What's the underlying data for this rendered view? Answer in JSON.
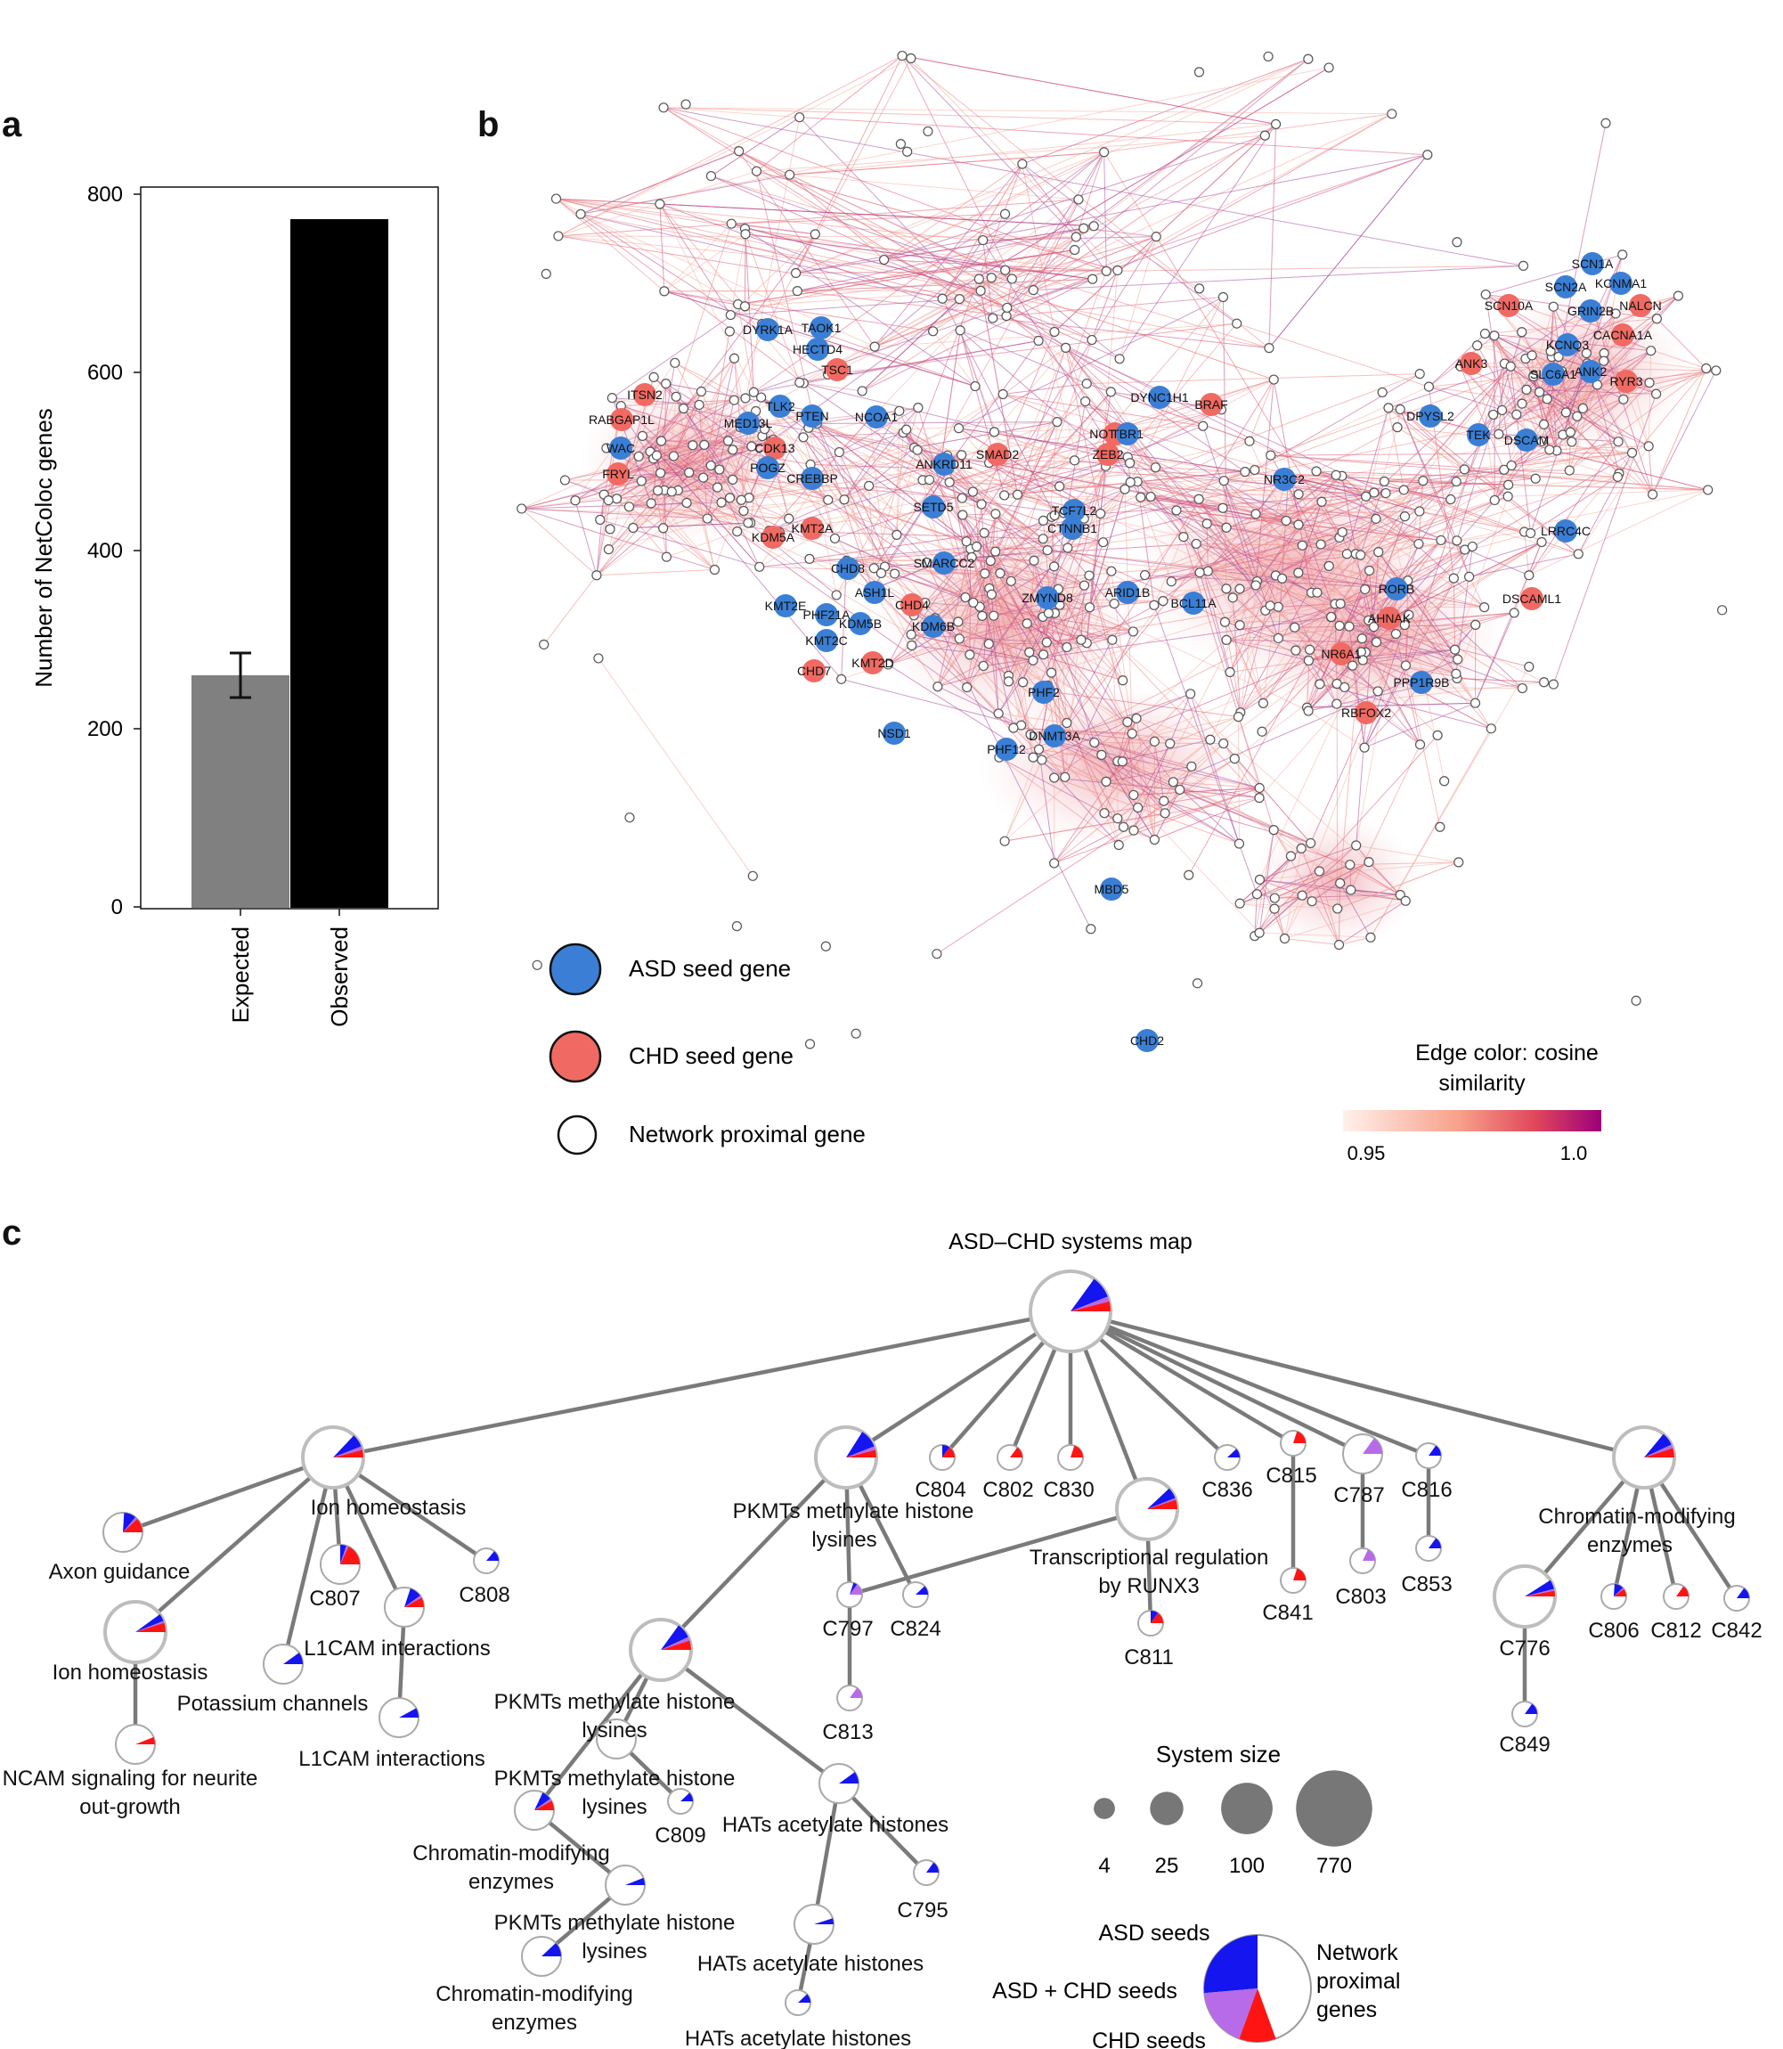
{
  "panels": {
    "a": "a",
    "b": "b",
    "c": "c"
  },
  "chart_data": {
    "type": "bar",
    "categories": [
      "Expected",
      "Observed"
    ],
    "values": [
      260,
      772
    ],
    "error": [
      {
        "low": 235,
        "high": 285
      },
      null
    ],
    "colors": [
      "#808080",
      "#000000"
    ],
    "ylabel": "Number of NetColoc genes",
    "ylim": [
      0,
      800
    ],
    "yticks": [
      0,
      200,
      400,
      600,
      800
    ]
  },
  "network": {
    "legend": {
      "asd": "ASD seed gene",
      "chd": "CHD seed gene",
      "proximal": "Network proximal gene"
    },
    "colors": {
      "asd": "#3a7fd5",
      "chd": "#f06a63",
      "proximal": "#ffffff"
    },
    "edge_legend": {
      "title_line1": "Edge color: cosine",
      "title_line2": "similarity",
      "min": "0.95",
      "max": "1.0"
    },
    "gene_labels": [
      {
        "name": "SCN1A",
        "type": "asd"
      },
      {
        "name": "SCN2A",
        "type": "asd"
      },
      {
        "name": "KCNMA1",
        "type": "asd"
      },
      {
        "name": "SCN10A",
        "type": "chd"
      },
      {
        "name": "GRIN2B",
        "type": "asd"
      },
      {
        "name": "NALCN",
        "type": "chd"
      },
      {
        "name": "CACNA1A",
        "type": "chd"
      },
      {
        "name": "KCNQ3",
        "type": "asd"
      },
      {
        "name": "ANK3",
        "type": "chd"
      },
      {
        "name": "SLC6A1",
        "type": "asd"
      },
      {
        "name": "ANK2",
        "type": "asd"
      },
      {
        "name": "RYR3",
        "type": "chd"
      },
      {
        "name": "DYRK1A",
        "type": "asd"
      },
      {
        "name": "TAOK1",
        "type": "asd"
      },
      {
        "name": "HECTD4",
        "type": "asd"
      },
      {
        "name": "TSC1",
        "type": "chd"
      },
      {
        "name": "ITSN2",
        "type": "chd"
      },
      {
        "name": "RABGAP1L",
        "type": "chd"
      },
      {
        "name": "TLK2",
        "type": "asd"
      },
      {
        "name": "PTEN",
        "type": "asd"
      },
      {
        "name": "NCOA1",
        "type": "asd"
      },
      {
        "name": "MED13L",
        "type": "asd"
      },
      {
        "name": "WAC",
        "type": "asd"
      },
      {
        "name": "CDK13",
        "type": "chd"
      },
      {
        "name": "POGZ",
        "type": "asd"
      },
      {
        "name": "FRYL",
        "type": "chd"
      },
      {
        "name": "CREBBP",
        "type": "asd"
      },
      {
        "name": "DYNC1H1",
        "type": "asd"
      },
      {
        "name": "BRAF",
        "type": "chd"
      },
      {
        "name": "NOTCH1",
        "type": "chd"
      },
      {
        "name": "TBR1",
        "type": "asd"
      },
      {
        "name": "ZEB2",
        "type": "chd"
      },
      {
        "name": "DPYSL2",
        "type": "asd"
      },
      {
        "name": "TEK",
        "type": "asd"
      },
      {
        "name": "DSCAM",
        "type": "asd"
      },
      {
        "name": "ANKRD11",
        "type": "asd"
      },
      {
        "name": "SMAD2",
        "type": "chd"
      },
      {
        "name": "NR3C2",
        "type": "asd"
      },
      {
        "name": "SETD5",
        "type": "asd"
      },
      {
        "name": "TCF7L2",
        "type": "asd"
      },
      {
        "name": "CTNNB1",
        "type": "asd"
      },
      {
        "name": "KMT2A",
        "type": "chd"
      },
      {
        "name": "KDM5A",
        "type": "chd"
      },
      {
        "name": "LRRC4C",
        "type": "asd"
      },
      {
        "name": "CHD8",
        "type": "asd"
      },
      {
        "name": "SMARCC2",
        "type": "asd"
      },
      {
        "name": "ASH1L",
        "type": "asd"
      },
      {
        "name": "ARID1B",
        "type": "asd"
      },
      {
        "name": "KMT2E",
        "type": "asd"
      },
      {
        "name": "CHD4",
        "type": "chd"
      },
      {
        "name": "ZMYND8",
        "type": "asd"
      },
      {
        "name": "BCL11A",
        "type": "asd"
      },
      {
        "name": "RORB",
        "type": "asd"
      },
      {
        "name": "DSCAML1",
        "type": "chd"
      },
      {
        "name": "PHF21A",
        "type": "asd"
      },
      {
        "name": "KDM5B",
        "type": "asd"
      },
      {
        "name": "KDM6B",
        "type": "asd"
      },
      {
        "name": "AHNAK",
        "type": "chd"
      },
      {
        "name": "KMT2C",
        "type": "asd"
      },
      {
        "name": "NR6A1",
        "type": "chd"
      },
      {
        "name": "CHD7",
        "type": "chd"
      },
      {
        "name": "KMT2D",
        "type": "chd"
      },
      {
        "name": "PPP1R9B",
        "type": "asd"
      },
      {
        "name": "PHF2",
        "type": "asd"
      },
      {
        "name": "RBFOX2",
        "type": "chd"
      },
      {
        "name": "NSD1",
        "type": "asd"
      },
      {
        "name": "DNMT3A",
        "type": "asd"
      },
      {
        "name": "PHF12",
        "type": "asd"
      },
      {
        "name": "MBD5",
        "type": "asd"
      },
      {
        "name": "CHD2",
        "type": "asd"
      }
    ]
  },
  "systems_map": {
    "title": "ASD–CHD systems map",
    "nodes": [
      {
        "id": "root",
        "label": "",
        "size": 770,
        "asd": 0.09,
        "both": 0.02,
        "chd": 0.04
      },
      {
        "id": "ion1",
        "label": "Ion homeostasis",
        "size": 100,
        "asd": 0.07,
        "both": 0.02,
        "chd": 0.04
      },
      {
        "id": "axon",
        "label": "Axon guidance",
        "size": 25,
        "asd": 0.1,
        "both": 0.02,
        "chd": 0.12
      },
      {
        "id": "ion2",
        "label": "Ion homeostasis",
        "size": 100,
        "asd": 0.04,
        "both": 0.01,
        "chd": 0.05
      },
      {
        "id": "ncam",
        "label": "NCAM signaling for neurite out-growth",
        "size": 25,
        "asd": 0.0,
        "both": 0.0,
        "chd": 0.06
      },
      {
        "id": "c807",
        "label": "C807",
        "size": 25,
        "asd": 0.05,
        "both": 0.02,
        "chd": 0.18
      },
      {
        "id": "potassium",
        "label": "Potassium channels",
        "size": 25,
        "asd": 0.1,
        "both": 0.0,
        "chd": 0.0
      },
      {
        "id": "l1cam1",
        "label": "L1CAM interactions",
        "size": 25,
        "asd": 0.1,
        "both": 0.02,
        "chd": 0.08
      },
      {
        "id": "l1cam2",
        "label": "L1CAM interactions",
        "size": 25,
        "asd": 0.08,
        "both": 0.0,
        "chd": 0.0
      },
      {
        "id": "c808",
        "label": "C808",
        "size": 4,
        "asd": 0.14,
        "both": 0.0,
        "chd": 0.0
      },
      {
        "id": "pkmt1",
        "label": "PKMTs methylate histone lysines",
        "size": 100,
        "asd": 0.1,
        "both": 0.02,
        "chd": 0.04
      },
      {
        "id": "c804",
        "label": "C804",
        "size": 4,
        "asd": 0.1,
        "both": 0.0,
        "chd": 0.15
      },
      {
        "id": "c802",
        "label": "C802",
        "size": 4,
        "asd": 0.0,
        "both": 0.0,
        "chd": 0.15
      },
      {
        "id": "c830",
        "label": "C830",
        "size": 4,
        "asd": 0.0,
        "both": 0.0,
        "chd": 0.2
      },
      {
        "id": "runx3",
        "label": "Transcriptional regulation by RUNX3",
        "size": 100,
        "asd": 0.06,
        "both": 0.01,
        "chd": 0.05
      },
      {
        "id": "c836",
        "label": "C836",
        "size": 4,
        "asd": 0.12,
        "both": 0.0,
        "chd": 0.0
      },
      {
        "id": "c815",
        "label": "C815",
        "size": 4,
        "asd": 0.0,
        "both": 0.0,
        "chd": 0.2
      },
      {
        "id": "c787",
        "label": "C787",
        "size": 25,
        "asd": 0.0,
        "both": 0.15,
        "chd": 0.0
      },
      {
        "id": "c816",
        "label": "C816",
        "size": 4,
        "asd": 0.15,
        "both": 0.0,
        "chd": 0.0
      },
      {
        "id": "chrom1",
        "label": "Chromatin-modifying enzymes",
        "size": 100,
        "asd": 0.07,
        "both": 0.02,
        "chd": 0.05
      },
      {
        "id": "pkmt2",
        "label": "PKMTs methylate histone lysines",
        "size": 100,
        "asd": 0.08,
        "both": 0.02,
        "chd": 0.05
      },
      {
        "id": "c797",
        "label": "C797",
        "size": 4,
        "asd": 0.05,
        "both": 0.15,
        "chd": 0.0
      },
      {
        "id": "c824",
        "label": "C824",
        "size": 4,
        "asd": 0.12,
        "both": 0.0,
        "chd": 0.0
      },
      {
        "id": "c813",
        "label": "C813",
        "size": 4,
        "asd": 0.0,
        "both": 0.15,
        "chd": 0.0
      },
      {
        "id": "c811",
        "label": "C811",
        "size": 4,
        "asd": 0.1,
        "both": 0.0,
        "chd": 0.15
      },
      {
        "id": "c841",
        "label": "C841",
        "size": 4,
        "asd": 0.0,
        "both": 0.0,
        "chd": 0.2
      },
      {
        "id": "c803",
        "label": "C803",
        "size": 4,
        "asd": 0.0,
        "both": 0.18,
        "chd": 0.0
      },
      {
        "id": "c853",
        "label": "C853",
        "size": 4,
        "asd": 0.15,
        "both": 0.0,
        "chd": 0.0
      },
      {
        "id": "c776",
        "label": "C776",
        "size": 100,
        "asd": 0.05,
        "both": 0.01,
        "chd": 0.03
      },
      {
        "id": "c806",
        "label": "C806",
        "size": 4,
        "asd": 0.12,
        "both": 0.02,
        "chd": 0.1
      },
      {
        "id": "c812",
        "label": "C812",
        "size": 4,
        "asd": 0.0,
        "both": 0.0,
        "chd": 0.15
      },
      {
        "id": "c842",
        "label": "C842",
        "size": 4,
        "asd": 0.15,
        "both": 0.0,
        "chd": 0.0
      },
      {
        "id": "c849",
        "label": "C849",
        "size": 4,
        "asd": 0.15,
        "both": 0.0,
        "chd": 0.0
      },
      {
        "id": "pkmt3",
        "label": "PKMTs methylate histone lysines",
        "size": 25,
        "asd": 0.0,
        "both": 0.0,
        "chd": 0.0
      },
      {
        "id": "chrom2",
        "label": "Chromatin-modifying enzymes",
        "size": 25,
        "asd": 0.08,
        "both": 0.02,
        "chd": 0.08
      },
      {
        "id": "c809",
        "label": "C809",
        "size": 4,
        "asd": 0.12,
        "both": 0.0,
        "chd": 0.0
      },
      {
        "id": "hat1",
        "label": "HATs acetylate histones",
        "size": 25,
        "asd": 0.1,
        "both": 0.0,
        "chd": 0.0
      },
      {
        "id": "c795",
        "label": "C795",
        "size": 4,
        "asd": 0.15,
        "both": 0.0,
        "chd": 0.0
      },
      {
        "id": "pkmt4",
        "label": "PKMTs methylate histone lysines",
        "size": 25,
        "asd": 0.06,
        "both": 0.0,
        "chd": 0.0
      },
      {
        "id": "chrom3",
        "label": "Chromatin-modifying enzymes",
        "size": 25,
        "asd": 0.12,
        "both": 0.0,
        "chd": 0.0
      },
      {
        "id": "hat2",
        "label": "HATs acetylate histones",
        "size": 25,
        "asd": 0.05,
        "both": 0.0,
        "chd": 0.0
      },
      {
        "id": "hat3",
        "label": "HATs acetylate histones",
        "size": 4,
        "asd": 0.12,
        "both": 0.0,
        "chd": 0.0
      }
    ],
    "edges": [
      [
        "root",
        "ion1"
      ],
      [
        "root",
        "pkmt1"
      ],
      [
        "root",
        "c804"
      ],
      [
        "root",
        "c802"
      ],
      [
        "root",
        "c830"
      ],
      [
        "root",
        "runx3"
      ],
      [
        "root",
        "c836"
      ],
      [
        "root",
        "c815"
      ],
      [
        "root",
        "c787"
      ],
      [
        "root",
        "c816"
      ],
      [
        "root",
        "chrom1"
      ],
      [
        "ion1",
        "axon"
      ],
      [
        "ion1",
        "ion2"
      ],
      [
        "ion1",
        "c807"
      ],
      [
        "ion1",
        "potassium"
      ],
      [
        "ion1",
        "l1cam1"
      ],
      [
        "ion1",
        "c808"
      ],
      [
        "ion2",
        "ncam"
      ],
      [
        "l1cam1",
        "l1cam2"
      ],
      [
        "pkmt1",
        "pkmt2"
      ],
      [
        "pkmt1",
        "c797"
      ],
      [
        "pkmt1",
        "c824"
      ],
      [
        "c797",
        "c813"
      ],
      [
        "runx3",
        "c797"
      ],
      [
        "runx3",
        "c811"
      ],
      [
        "c815",
        "c841"
      ],
      [
        "c787",
        "c803"
      ],
      [
        "c816",
        "c853"
      ],
      [
        "chrom1",
        "c776"
      ],
      [
        "chrom1",
        "c806"
      ],
      [
        "chrom1",
        "c812"
      ],
      [
        "chrom1",
        "c842"
      ],
      [
        "c776",
        "c849"
      ],
      [
        "pkmt2",
        "pkmt3"
      ],
      [
        "pkmt2",
        "hat1"
      ],
      [
        "pkmt2",
        "chrom2"
      ],
      [
        "pkmt3",
        "c809"
      ],
      [
        "chrom2",
        "pkmt4"
      ],
      [
        "pkmt4",
        "chrom3"
      ],
      [
        "hat1",
        "c795"
      ],
      [
        "hat1",
        "hat2"
      ],
      [
        "hat2",
        "hat3"
      ]
    ],
    "size_legend": {
      "title": "System size",
      "sizes": [
        4,
        25,
        100,
        770
      ]
    },
    "pie_legend": {
      "asd": "ASD seeds",
      "both": "ASD + CHD seeds",
      "chd": "CHD seeds",
      "proximal_line1": "Network",
      "proximal_line2": "proximal",
      "proximal_line3": "genes"
    },
    "pie_colors": {
      "asd": "#1515f0",
      "both": "#b86be8",
      "chd": "#ff1414",
      "proximal": "#ffffff"
    }
  }
}
